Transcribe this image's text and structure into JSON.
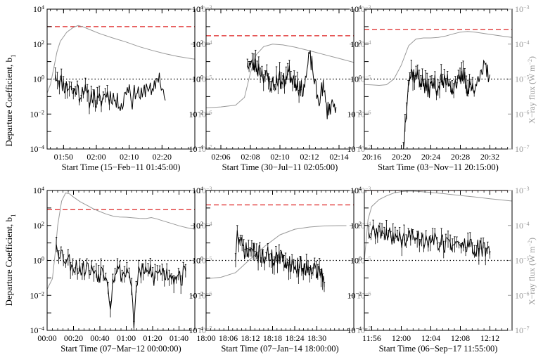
{
  "figure": {
    "left_axis_label": "Departure Coefficient, b",
    "left_axis_label_sub": "1",
    "right_axis_label": "X−ray flux (W m",
    "right_axis_label_sup": "−2",
    "right_axis_label_end": ")"
  },
  "colors": {
    "departure": "#000000",
    "xray": "#999999",
    "threshold": "#dd2222",
    "unity": "#000000"
  },
  "chart_data": [
    {
      "type": "line",
      "xlabel": "Start Time (15−Feb−11 01:45:00)",
      "xlim": [
        0,
        45
      ],
      "xticks": [
        {
          "v": 5,
          "label": "01:50"
        },
        {
          "v": 15,
          "label": "02:00"
        },
        {
          "v": 25,
          "label": "02:10"
        },
        {
          "v": 35,
          "label": "02:20"
        }
      ],
      "y_scale": "log",
      "ylim": [
        0.0001,
        10000
      ],
      "y2_scale": "log",
      "y2lim": [
        1e-07,
        0.001
      ],
      "threshold_b1": 1000,
      "unity_b1": 1,
      "departure_seed": 11,
      "departure": [
        [
          2.5,
          1.8
        ],
        [
          3,
          1.5
        ],
        [
          4,
          0.8
        ],
        [
          5,
          0.5
        ],
        [
          6,
          0.35
        ],
        [
          7,
          0.4
        ],
        [
          8,
          0.15
        ],
        [
          9,
          0.35
        ],
        [
          10,
          0.12
        ],
        [
          11,
          0.4
        ],
        [
          12,
          0.1
        ],
        [
          13,
          0.06
        ],
        [
          14,
          0.18
        ],
        [
          15,
          0.04
        ],
        [
          16,
          0.05
        ],
        [
          17,
          0.08
        ],
        [
          18,
          0.18
        ],
        [
          19,
          0.1
        ],
        [
          20,
          0.12
        ],
        [
          21,
          0.04
        ],
        [
          22,
          0.06
        ],
        [
          23,
          0.03
        ],
        [
          24,
          0.25
        ],
        [
          25,
          0.4
        ],
        [
          26,
          0.05
        ],
        [
          27,
          0.3
        ],
        [
          28,
          0.15
        ],
        [
          29,
          0.08
        ],
        [
          30,
          0.35
        ],
        [
          31,
          0.5
        ],
        [
          32,
          0.08
        ],
        [
          33,
          0.6
        ],
        [
          34,
          2.0
        ],
        [
          35,
          0.3
        ],
        [
          36,
          0.06
        ]
      ],
      "departure_errorbars_until": 19,
      "xray": [
        [
          0,
          4e-06
        ],
        [
          1,
          7e-06
        ],
        [
          2,
          2e-05
        ],
        [
          3,
          6e-05
        ],
        [
          4,
          0.00012
        ],
        [
          6,
          0.00022
        ],
        [
          8,
          0.0003
        ],
        [
          9.5,
          0.00034
        ],
        [
          11,
          0.00031
        ],
        [
          13,
          0.00026
        ],
        [
          16,
          0.0002
        ],
        [
          20,
          0.00015
        ],
        [
          24,
          0.000115
        ],
        [
          28,
          8.5e-05
        ],
        [
          32,
          6.6e-05
        ],
        [
          36,
          5.3e-05
        ],
        [
          40,
          4.4e-05
        ],
        [
          45,
          3.7e-05
        ]
      ]
    },
    {
      "type": "line",
      "xlabel": "Start Time (30−Jul−11 02:05:00)",
      "xlim": [
        0,
        10
      ],
      "xticks": [
        {
          "v": 1,
          "label": "02:06"
        },
        {
          "v": 3,
          "label": "02:08"
        },
        {
          "v": 5,
          "label": "02:10"
        },
        {
          "v": 7,
          "label": "02:12"
        },
        {
          "v": 9,
          "label": "02:14"
        }
      ],
      "y_scale": "log",
      "ylim": [
        0.0001,
        10000
      ],
      "y2_scale": "log",
      "y2lim": [
        1e-07,
        0.001
      ],
      "threshold_b1": 300,
      "unity_b1": 1,
      "departure_seed": 23,
      "departure": [
        [
          2.8,
          8
        ],
        [
          3.1,
          6
        ],
        [
          3.4,
          5
        ],
        [
          3.7,
          3
        ],
        [
          4.0,
          1.5
        ],
        [
          4.3,
          0.7
        ],
        [
          4.6,
          0.4
        ],
        [
          4.9,
          1.2
        ],
        [
          5.2,
          0.5
        ],
        [
          5.5,
          2.5
        ],
        [
          5.8,
          1.5
        ],
        [
          6.1,
          0.8
        ],
        [
          6.4,
          0.2
        ],
        [
          6.7,
          0.6
        ],
        [
          7.0,
          20
        ],
        [
          7.2,
          5
        ],
        [
          7.4,
          0.3
        ],
        [
          7.6,
          0.05
        ],
        [
          7.9,
          0.4
        ],
        [
          8.2,
          0.015
        ],
        [
          8.5,
          0.04
        ],
        [
          8.8,
          0.025
        ]
      ],
      "departure_errorbars_until": 6.4,
      "xray": [
        [
          0,
          1.5e-06
        ],
        [
          1,
          1.6e-06
        ],
        [
          2,
          1.8e-06
        ],
        [
          2.6,
          3e-06
        ],
        [
          3.0,
          1.5e-05
        ],
        [
          3.4,
          5e-05
        ],
        [
          3.9,
          8.5e-05
        ],
        [
          4.5,
          0.0001
        ],
        [
          5.2,
          9.5e-05
        ],
        [
          6,
          8.2e-05
        ],
        [
          7,
          6.5e-05
        ],
        [
          8,
          5e-05
        ],
        [
          9,
          3.9e-05
        ],
        [
          10,
          3e-05
        ]
      ]
    },
    {
      "type": "line",
      "xlabel": "Start Time (03−Nov−11 20:15:00)",
      "xlim": [
        0,
        20
      ],
      "xticks": [
        {
          "v": 1,
          "label": "20:16"
        },
        {
          "v": 5,
          "label": "20:20"
        },
        {
          "v": 9,
          "label": "20:24"
        },
        {
          "v": 13,
          "label": "20:28"
        },
        {
          "v": 17,
          "label": "20:32"
        }
      ],
      "y_scale": "log",
      "ylim": [
        0.0001,
        10000
      ],
      "y2_scale": "log",
      "y2lim": [
        1e-07,
        0.001
      ],
      "threshold_b1": 700,
      "unity_b1": 1,
      "departure_seed": 37,
      "departure": [
        [
          5.3,
          0.0001
        ],
        [
          5.9,
          0.6
        ],
        [
          6.4,
          2.5
        ],
        [
          6.9,
          1.5
        ],
        [
          7.4,
          1.2
        ],
        [
          7.9,
          0.6
        ],
        [
          8.4,
          0.25
        ],
        [
          8.9,
          0.3
        ],
        [
          9.4,
          0.6
        ],
        [
          9.9,
          0.35
        ],
        [
          10.4,
          0.8
        ],
        [
          10.9,
          0.5
        ],
        [
          11.4,
          1.0
        ],
        [
          11.9,
          0.3
        ],
        [
          12.4,
          0.8
        ],
        [
          12.9,
          0.5
        ],
        [
          13.4,
          1.8
        ],
        [
          13.9,
          0.3
        ],
        [
          14.4,
          0.6
        ],
        [
          14.9,
          0.1
        ],
        [
          15.3,
          3
        ],
        [
          15.8,
          1
        ],
        [
          16.2,
          5
        ],
        [
          16.6,
          2.5
        ],
        [
          17.0,
          1.8
        ]
      ],
      "departure_errorbars_until": 15,
      "xray": [
        [
          0,
          7e-06
        ],
        [
          1,
          6.8e-06
        ],
        [
          2,
          6.6e-06
        ],
        [
          3,
          6.9e-06
        ],
        [
          4,
          1e-05
        ],
        [
          5,
          2.5e-05
        ],
        [
          6,
          9e-05
        ],
        [
          7,
          0.00014
        ],
        [
          8,
          0.00015
        ],
        [
          9,
          0.00015
        ],
        [
          10,
          0.000155
        ],
        [
          11,
          0.00017
        ],
        [
          12,
          0.000195
        ],
        [
          13,
          0.00022
        ],
        [
          14,
          0.00023
        ],
        [
          15,
          0.00022
        ],
        [
          17,
          0.00019
        ],
        [
          19,
          0.000165
        ],
        [
          20,
          0.000155
        ]
      ]
    },
    {
      "type": "line",
      "xlabel": "Start Time (07−Mar−12 00:00:00)",
      "xlim": [
        0,
        112
      ],
      "xticks": [
        {
          "v": 0,
          "label": "00:00"
        },
        {
          "v": 20,
          "label": "00:20"
        },
        {
          "v": 40,
          "label": "00:40"
        },
        {
          "v": 60,
          "label": "01:00"
        },
        {
          "v": 80,
          "label": "01:20"
        },
        {
          "v": 100,
          "label": "01:40"
        }
      ],
      "y_scale": "log",
      "ylim": [
        0.0001,
        10000
      ],
      "y2_scale": "log",
      "y2lim": [
        1e-07,
        0.001
      ],
      "threshold_b1": 800,
      "unity_b1": 1,
      "departure_seed": 53,
      "departure": [
        [
          7,
          8
        ],
        [
          9,
          4
        ],
        [
          12,
          2
        ],
        [
          15,
          1.2
        ],
        [
          18,
          0.8
        ],
        [
          21,
          0.5
        ],
        [
          24,
          0.4
        ],
        [
          27,
          0.3
        ],
        [
          30,
          0.5
        ],
        [
          33,
          0.2
        ],
        [
          36,
          0.35
        ],
        [
          39,
          0.15
        ],
        [
          42,
          0.3
        ],
        [
          45,
          0.2
        ],
        [
          48,
          0.004
        ],
        [
          51,
          0.25
        ],
        [
          54,
          0.3
        ],
        [
          57,
          0.15
        ],
        [
          60,
          0.25
        ],
        [
          63,
          0.2
        ],
        [
          66,
          0.0002
        ],
        [
          69,
          0.3
        ],
        [
          72,
          0.2
        ],
        [
          75,
          0.15
        ],
        [
          78,
          0.3
        ],
        [
          81,
          0.1
        ],
        [
          84,
          0.2
        ],
        [
          87,
          0.25
        ],
        [
          90,
          0.15
        ],
        [
          93,
          0.2
        ],
        [
          96,
          0.12
        ],
        [
          99,
          0.2
        ],
        [
          102,
          0.1
        ],
        [
          105,
          0.25
        ]
      ],
      "departure_errorbars_until": 112,
      "xray": [
        [
          0,
          1.5e-06
        ],
        [
          4,
          3e-06
        ],
        [
          6,
          1.5e-05
        ],
        [
          8,
          0.0001
        ],
        [
          11,
          0.0005
        ],
        [
          14,
          0.00085
        ],
        [
          17,
          0.0008
        ],
        [
          20,
          0.00065
        ],
        [
          25,
          0.00048
        ],
        [
          30,
          0.00038
        ],
        [
          35,
          0.0003
        ],
        [
          40,
          0.00025
        ],
        [
          45,
          0.00021
        ],
        [
          50,
          0.000185
        ],
        [
          55,
          0.000175
        ],
        [
          60,
          0.000172
        ],
        [
          65,
          0.000165
        ],
        [
          70,
          0.00016
        ],
        [
          75,
          0.000158
        ],
        [
          79,
          0.000168
        ],
        [
          83,
          0.000155
        ],
        [
          88,
          0.000135
        ],
        [
          94,
          0.000115
        ],
        [
          100,
          9.8e-05
        ],
        [
          106,
          8.6e-05
        ],
        [
          112,
          7.8e-05
        ]
      ]
    },
    {
      "type": "line",
      "xlabel": "Start Time (07−Jan−14 18:00:00)",
      "xlim": [
        0,
        40
      ],
      "xticks": [
        {
          "v": 0,
          "label": "18:00"
        },
        {
          "v": 6,
          "label": "18:06"
        },
        {
          "v": 12,
          "label": "18:12"
        },
        {
          "v": 18,
          "label": "18:18"
        },
        {
          "v": 24,
          "label": "18:24"
        },
        {
          "v": 30,
          "label": "18:30"
        }
      ],
      "y_scale": "log",
      "ylim": [
        0.0001,
        10000
      ],
      "y2_scale": "log",
      "y2lim": [
        1e-07,
        0.001
      ],
      "threshold_b1": 1500,
      "unity_b1": 1,
      "departure_seed": 71,
      "departure": [
        [
          8,
          1
        ],
        [
          8.3,
          40
        ],
        [
          9,
          10
        ],
        [
          10,
          5
        ],
        [
          11,
          3
        ],
        [
          12,
          4
        ],
        [
          13,
          3
        ],
        [
          14,
          2
        ],
        [
          15,
          2.5
        ],
        [
          16,
          1.5
        ],
        [
          17,
          2
        ],
        [
          18,
          1.2
        ],
        [
          19,
          1.5
        ],
        [
          20,
          1.0
        ],
        [
          21,
          1.2
        ],
        [
          22,
          0.8
        ],
        [
          23,
          0.6
        ],
        [
          24,
          0.5
        ],
        [
          25,
          0.4
        ],
        [
          26,
          0.6
        ],
        [
          27,
          0.3
        ],
        [
          28,
          0.5
        ],
        [
          29,
          0.4
        ],
        [
          30,
          0.2
        ],
        [
          31,
          0.3
        ],
        [
          32,
          0.03
        ]
      ],
      "departure_errorbars_until": 40,
      "xray": [
        [
          0,
          3e-06
        ],
        [
          4,
          3.3e-06
        ],
        [
          8,
          4.5e-06
        ],
        [
          12,
          1.1e-05
        ],
        [
          16,
          2.6e-05
        ],
        [
          20,
          5.4e-05
        ],
        [
          24,
          7.8e-05
        ],
        [
          28,
          9e-05
        ],
        [
          32,
          9.7e-05
        ],
        [
          36,
          9.9e-05
        ],
        [
          38,
          9.9e-05
        ]
      ]
    },
    {
      "type": "line",
      "xlabel": "Start Time (06−Sep−17 11:55:00)",
      "xlim": [
        0,
        20
      ],
      "xticks": [
        {
          "v": 1,
          "label": "11:56"
        },
        {
          "v": 5,
          "label": "12:00"
        },
        {
          "v": 9,
          "label": "12:04"
        },
        {
          "v": 13,
          "label": "12:08"
        },
        {
          "v": 17,
          "label": "12:12"
        }
      ],
      "y_scale": "log",
      "ylim": [
        0.0001,
        10000
      ],
      "y2_scale": "log",
      "y2lim": [
        1e-07,
        0.001
      ],
      "threshold_b1": 10000,
      "unity_b1": 1,
      "departure_seed": 89,
      "departure": [
        [
          0.6,
          40
        ],
        [
          1,
          30
        ],
        [
          2,
          50
        ],
        [
          3,
          20
        ],
        [
          4,
          30
        ],
        [
          5,
          15
        ],
        [
          6,
          20
        ],
        [
          7,
          25
        ],
        [
          8,
          15
        ],
        [
          9,
          20
        ],
        [
          10,
          10
        ],
        [
          11,
          8
        ],
        [
          12,
          12
        ],
        [
          13,
          6
        ],
        [
          14,
          8
        ],
        [
          15,
          5
        ],
        [
          16,
          4
        ],
        [
          16.5,
          3
        ],
        [
          17,
          2
        ]
      ],
      "departure_errorbars_until": 20,
      "xray": [
        [
          0,
          1e-05
        ],
        [
          0.5,
          0.00015
        ],
        [
          1,
          0.00035
        ],
        [
          2,
          0.00055
        ],
        [
          3,
          0.0007
        ],
        [
          4,
          0.00085
        ],
        [
          5,
          0.00093
        ],
        [
          6,
          0.00097
        ],
        [
          7,
          0.00095
        ],
        [
          9,
          0.00088
        ],
        [
          11,
          0.0008
        ],
        [
          13,
          0.00072
        ],
        [
          15,
          0.00065
        ],
        [
          17,
          0.00058
        ],
        [
          20,
          0.0005
        ]
      ]
    }
  ]
}
